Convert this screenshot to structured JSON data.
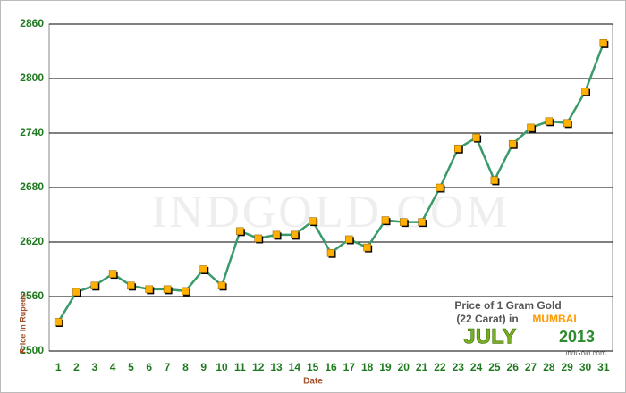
{
  "chart_data": {
    "type": "line",
    "y_label": "Price in Rupees",
    "x_label": "Date",
    "watermark": "IndGold.com",
    "annotation": {
      "line1": "Price of 1 Gram Gold",
      "line2": "(22 Carat) in",
      "city": "MUMBAI",
      "month": "JULY",
      "year": "2013",
      "site": "IndGold.com"
    },
    "categories": [
      "1",
      "2",
      "3",
      "4",
      "5",
      "6",
      "7",
      "8",
      "9",
      "10",
      "11",
      "12",
      "13",
      "14",
      "15",
      "16",
      "17",
      "18",
      "19",
      "20",
      "21",
      "22",
      "23",
      "24",
      "25",
      "26",
      "27",
      "28",
      "29",
      "30",
      "31"
    ],
    "series": [
      {
        "color": "#3a9a6a",
        "marker_color": "#ffb000",
        "values": [
          2532,
          2565,
          2572,
          2585,
          2572,
          2568,
          2568,
          2566,
          2590,
          2572,
          2632,
          2624,
          2628,
          2628,
          2643,
          2608,
          2623,
          2614,
          2644,
          2642,
          2642,
          2680,
          2723,
          2735,
          2688,
          2728,
          2746,
          2753,
          2751,
          2786,
          2839
        ]
      }
    ],
    "ylim": [
      2500,
      2860
    ],
    "yticks": [
      2500,
      2560,
      2620,
      2680,
      2740,
      2800,
      2860
    ],
    "grid": true
  }
}
